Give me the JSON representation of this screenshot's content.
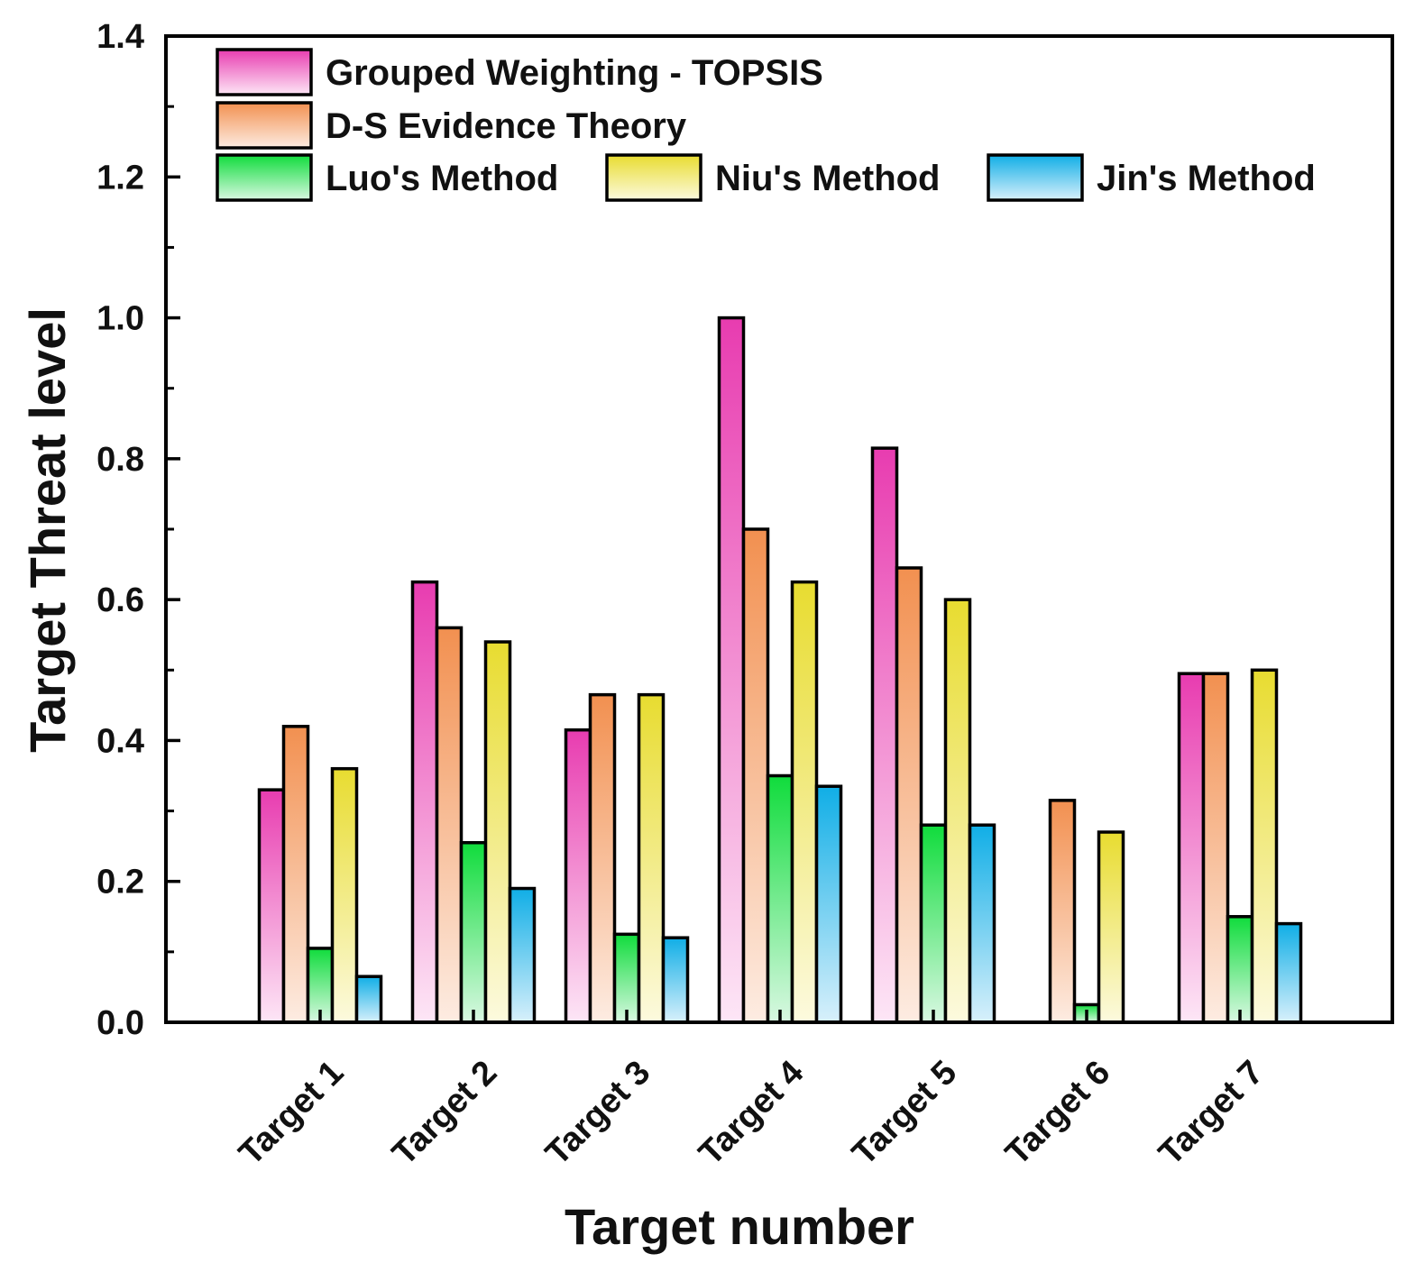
{
  "chart_data": {
    "type": "bar",
    "title": "",
    "xlabel": "Target number",
    "ylabel": "Target Threat level",
    "ylim": [
      0,
      1.4
    ],
    "yticks": [
      "0.0",
      "0.2",
      "0.4",
      "0.6",
      "0.8",
      "1.0",
      "1.2",
      "1.4"
    ],
    "grid": false,
    "legend_position": "top-left",
    "categories": [
      "Target 1",
      "Target 2",
      "Target 3",
      "Target 4",
      "Target 5",
      "Target 6",
      "Target 7"
    ],
    "series": [
      {
        "name": "Grouped Weighting - TOPSIS",
        "color_top": "#e83cb0",
        "color_bottom": "#fde6f6",
        "values": [
          0.33,
          0.625,
          0.415,
          1.0,
          0.815,
          0,
          0.495
        ]
      },
      {
        "name": "D-S Evidence Theory",
        "color_top": "#f29050",
        "color_bottom": "#fdece2",
        "values": [
          0.42,
          0.56,
          0.465,
          0.7,
          0.645,
          0.315,
          0.495
        ]
      },
      {
        "name": "Luo's Method",
        "color_top": "#10dc3c",
        "color_bottom": "#d9f8e2",
        "values": [
          0.105,
          0.255,
          0.125,
          0.35,
          0.28,
          0.025,
          0.15
        ]
      },
      {
        "name": "Niu's Method",
        "color_top": "#e8dc30",
        "color_bottom": "#fcfade",
        "values": [
          0.36,
          0.54,
          0.465,
          0.625,
          0.6,
          0.27,
          0.5
        ]
      },
      {
        "name": "Jin's Method",
        "color_top": "#10aee6",
        "color_bottom": "#d8f0fb",
        "values": [
          0.065,
          0.19,
          0.12,
          0.335,
          0.28,
          0,
          0.14
        ]
      }
    ]
  }
}
